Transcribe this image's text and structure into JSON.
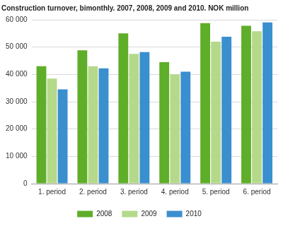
{
  "chart_data": {
    "type": "bar",
    "title": "Construction turnover, bimonthly. 2007, 2008, 2009 and 2010. NOK million",
    "categories": [
      "1. period",
      "2. period",
      "3. period",
      "4. period",
      "5. period",
      "6. period"
    ],
    "series": [
      {
        "name": "2008",
        "color": "#5fae29",
        "values": [
          43000,
          48800,
          55000,
          44500,
          58800,
          57800
        ]
      },
      {
        "name": "2009",
        "color": "#b5d98a",
        "values": [
          38500,
          43000,
          47500,
          40000,
          52000,
          55800
        ]
      },
      {
        "name": "2010",
        "color": "#3a8fcf",
        "values": [
          34500,
          42200,
          48200,
          41000,
          53800,
          59000
        ]
      }
    ],
    "ylim": [
      0,
      60000
    ],
    "yticks": [
      0,
      {
        "value": 10000,
        "label": "10 000"
      },
      {
        "value": 20000,
        "label": "20 000"
      },
      {
        "value": 30000,
        "label": "30 000"
      },
      {
        "value": 40000,
        "label": "40 000"
      },
      {
        "value": 50000,
        "label": "50 000"
      },
      {
        "value": 60000,
        "label": "60 000"
      }
    ],
    "grid": true,
    "legend": "bottom"
  }
}
